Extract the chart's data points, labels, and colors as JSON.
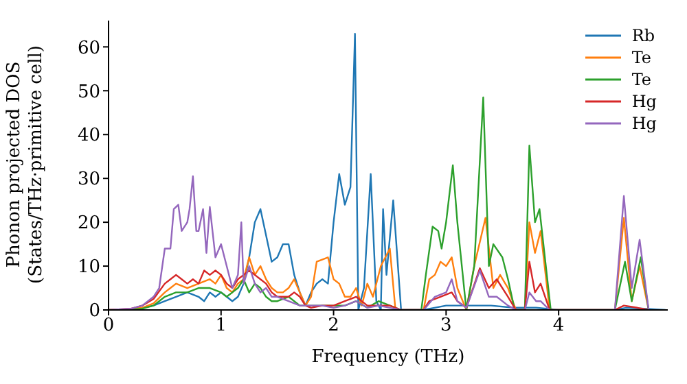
{
  "chart_data": {
    "type": "line",
    "xlabel": "Frequency (THz)",
    "ylabel": "Phonon projected DOS\n(States/THz·primitive cell)",
    "xlim": [
      0,
      4.97
    ],
    "xticks": [
      0,
      1,
      2,
      3,
      4
    ],
    "ylim": [
      0,
      66
    ],
    "yticks": [
      0,
      10,
      20,
      30,
      40,
      50,
      60
    ],
    "grid": false,
    "legend": "top right",
    "marker": "none",
    "line_style": "solid",
    "series": [
      {
        "name": "Rb",
        "color": "#1f77b4",
        "x": [
          0.3,
          0.4,
          0.5,
          0.6,
          0.7,
          0.8,
          0.85,
          0.9,
          0.95,
          1.0,
          1.05,
          1.1,
          1.15,
          1.2,
          1.25,
          1.3,
          1.35,
          1.4,
          1.45,
          1.5,
          1.55,
          1.6,
          1.65,
          1.7,
          1.75,
          1.8,
          1.85,
          1.9,
          1.95,
          2.0,
          2.05,
          2.1,
          2.15,
          2.19,
          2.22,
          2.27,
          2.33,
          2.38,
          2.42,
          2.44,
          2.47,
          2.53,
          2.6,
          2.8,
          3.0,
          3.2,
          3.4,
          3.6,
          3.8,
          4.0,
          4.5,
          4.6,
          4.95
        ],
        "values": [
          0.5,
          1,
          2,
          3,
          4,
          3,
          2,
          4,
          3,
          4,
          3,
          2,
          3,
          6,
          12,
          20,
          23,
          17,
          11,
          12,
          15,
          15,
          8,
          4,
          1,
          4,
          6,
          7,
          6,
          20,
          31,
          24,
          28,
          63,
          0,
          5,
          31,
          2,
          0,
          23,
          8,
          25,
          0,
          0,
          1,
          1,
          1,
          0.5,
          0.5,
          0,
          0,
          0.5,
          0
        ]
      },
      {
        "name": "Te",
        "color": "#ff7f0e",
        "x": [
          0,
          0.2,
          0.3,
          0.4,
          0.5,
          0.55,
          0.6,
          0.7,
          0.8,
          0.9,
          0.95,
          1.0,
          1.05,
          1.1,
          1.15,
          1.2,
          1.25,
          1.3,
          1.35,
          1.4,
          1.45,
          1.5,
          1.55,
          1.6,
          1.65,
          1.7,
          1.75,
          1.8,
          1.85,
          1.95,
          2.0,
          2.05,
          2.1,
          2.15,
          2.2,
          2.25,
          2.3,
          2.35,
          2.42,
          2.5,
          2.55,
          2.8,
          2.85,
          2.9,
          2.95,
          3.0,
          3.05,
          3.1,
          3.18,
          3.25,
          3.35,
          3.42,
          3.48,
          3.55,
          3.62,
          3.7,
          3.74,
          3.79,
          3.84,
          3.92,
          4.5,
          4.58,
          4.65,
          4.72,
          4.8
        ],
        "values": [
          0,
          0.2,
          0.5,
          1.5,
          4,
          5,
          6,
          5,
          6,
          7,
          6,
          8,
          5,
          4,
          6,
          7,
          12,
          8,
          10,
          7,
          5,
          4,
          4,
          5,
          7,
          4,
          1,
          3,
          11,
          12,
          7,
          6,
          3,
          3,
          5,
          1,
          6,
          3,
          10,
          14,
          0,
          0,
          7,
          8,
          11,
          10,
          12,
          5,
          0,
          10,
          21,
          5,
          8,
          5,
          0,
          0,
          20,
          13,
          18,
          0,
          0,
          21,
          2,
          10,
          0
        ]
      },
      {
        "name": "Te",
        "color": "#2ca02c",
        "x": [
          0,
          0.2,
          0.3,
          0.4,
          0.5,
          0.6,
          0.7,
          0.8,
          0.9,
          1.0,
          1.05,
          1.1,
          1.15,
          1.2,
          1.25,
          1.3,
          1.35,
          1.4,
          1.45,
          1.5,
          1.6,
          1.7,
          1.8,
          1.9,
          2.0,
          2.1,
          2.2,
          2.3,
          2.4,
          2.5,
          2.6,
          2.78,
          2.82,
          2.88,
          2.93,
          2.96,
          3.0,
          3.06,
          3.1,
          3.18,
          3.25,
          3.33,
          3.38,
          3.42,
          3.5,
          3.55,
          3.61,
          3.7,
          3.74,
          3.79,
          3.83,
          3.93,
          4.5,
          4.59,
          4.65,
          4.73,
          4.8
        ],
        "values": [
          0,
          0.1,
          0.3,
          1,
          3,
          4,
          4,
          5,
          5,
          4,
          3,
          4,
          5,
          7,
          4,
          6,
          5,
          3,
          2,
          2,
          3,
          1,
          1,
          1,
          1,
          1,
          2,
          0.5,
          2,
          1,
          0,
          0,
          8,
          19,
          18,
          14,
          20,
          33,
          20,
          0,
          10,
          48.5,
          10,
          15,
          12,
          7,
          0,
          0,
          37.5,
          20,
          23,
          0,
          0,
          11,
          2,
          12,
          0
        ]
      },
      {
        "name": "Hg",
        "color": "#d62728",
        "x": [
          0,
          0.2,
          0.3,
          0.4,
          0.5,
          0.55,
          0.6,
          0.65,
          0.7,
          0.75,
          0.8,
          0.85,
          0.9,
          0.95,
          1.0,
          1.05,
          1.1,
          1.15,
          1.2,
          1.25,
          1.3,
          1.35,
          1.4,
          1.45,
          1.5,
          1.55,
          1.6,
          1.65,
          1.7,
          1.75,
          1.8,
          1.9,
          2.0,
          2.1,
          2.2,
          2.3,
          2.4,
          2.5,
          2.6,
          2.8,
          2.85,
          2.95,
          3.05,
          3.1,
          3.18,
          3.3,
          3.38,
          3.45,
          3.55,
          3.62,
          3.7,
          3.74,
          3.79,
          3.84,
          3.92,
          4.5,
          4.58,
          4.7,
          4.8
        ],
        "values": [
          0,
          0.3,
          1,
          2.5,
          6,
          7,
          8,
          7,
          6,
          7,
          6,
          9,
          8,
          9,
          8,
          6,
          5,
          7,
          8,
          9,
          8,
          7,
          6,
          4,
          3,
          3,
          3,
          4,
          3,
          1,
          0.5,
          1,
          1,
          2,
          3,
          1,
          1,
          1,
          0,
          0,
          2,
          3,
          4,
          2,
          0.5,
          9.5,
          5,
          7,
          3,
          0,
          0,
          11,
          4,
          6,
          0,
          0,
          1,
          0.5,
          0
        ]
      },
      {
        "name": "Hg",
        "color": "#9467bd",
        "x": [
          0,
          0.2,
          0.3,
          0.4,
          0.45,
          0.5,
          0.55,
          0.58,
          0.62,
          0.65,
          0.7,
          0.72,
          0.75,
          0.78,
          0.8,
          0.84,
          0.87,
          0.9,
          0.95,
          1.0,
          1.05,
          1.1,
          1.15,
          1.18,
          1.2,
          1.25,
          1.3,
          1.35,
          1.4,
          1.45,
          1.5,
          1.6,
          1.7,
          1.8,
          1.9,
          2.0,
          2.1,
          2.2,
          2.3,
          2.4,
          2.5,
          2.6,
          2.8,
          2.9,
          3.0,
          3.05,
          3.1,
          3.18,
          3.3,
          3.38,
          3.45,
          3.55,
          3.62,
          3.7,
          3.74,
          3.8,
          3.84,
          3.92,
          4.5,
          4.58,
          4.65,
          4.72,
          4.8
        ],
        "values": [
          0,
          0.3,
          1,
          3,
          5,
          14,
          14,
          23,
          24,
          18,
          20,
          23,
          30.5,
          18,
          18,
          23,
          13,
          23.5,
          12,
          15,
          10,
          5,
          8,
          20,
          6,
          10,
          6,
          4,
          5,
          3,
          3,
          2,
          1,
          1,
          1,
          0.5,
          1,
          2,
          0.5,
          1,
          0.5,
          0,
          0,
          3,
          4,
          7,
          2,
          0.5,
          9,
          3,
          3,
          1,
          0,
          0,
          4,
          2,
          2,
          0,
          0,
          26,
          5,
          16,
          0
        ]
      }
    ]
  }
}
